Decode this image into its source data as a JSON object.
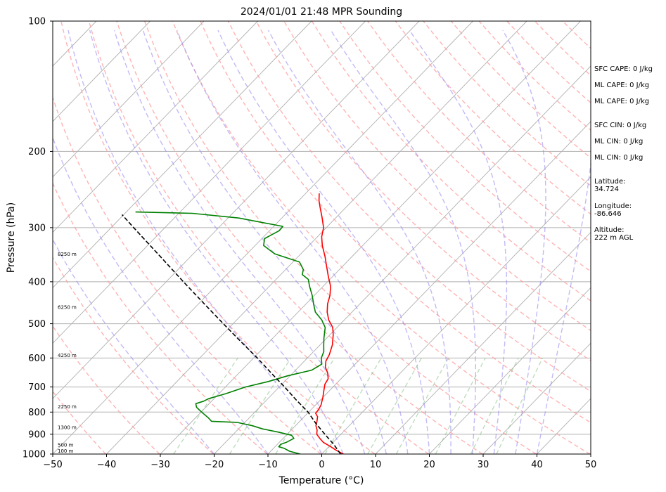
{
  "chart_data": {
    "type": "line",
    "title": "2024/01/01 21:48 MPR Sounding",
    "xlabel": "Temperature (°C)",
    "ylabel": "Pressure (hPa)",
    "xlim": [
      -50,
      50
    ],
    "ylim": [
      1000,
      100
    ],
    "y_scale": "log",
    "skew_x": true,
    "grid": true,
    "x_ticks": [
      "−50",
      "−40",
      "−30",
      "−20",
      "−10",
      "0",
      "10",
      "20",
      "30",
      "40",
      "50"
    ],
    "y_ticks": [
      "100",
      "200",
      "300",
      "400",
      "500",
      "600",
      "700",
      "800",
      "900",
      "1000"
    ],
    "height_labels": [
      {
        "text": "100 m",
        "p": 985
      },
      {
        "text": "500 m",
        "p": 955
      },
      {
        "text": "1300 m",
        "p": 870
      },
      {
        "text": "2250 m",
        "p": 778
      },
      {
        "text": "4250 m",
        "p": 592
      },
      {
        "text": "6250 m",
        "p": 459
      },
      {
        "text": "8250 m",
        "p": 346
      }
    ],
    "series": [
      {
        "color": "#ff0000",
        "style": "solid",
        "points": [
          {
            "p": 1000,
            "t": 4.0
          },
          {
            "p": 980,
            "t": 2.0
          },
          {
            "p": 960,
            "t": 0.2
          },
          {
            "p": 940,
            "t": -1.8
          },
          {
            "p": 920,
            "t": -3.2
          },
          {
            "p": 900,
            "t": -4.5
          },
          {
            "p": 880,
            "t": -5.2
          },
          {
            "p": 860,
            "t": -6.2
          },
          {
            "p": 840,
            "t": -6.8
          },
          {
            "p": 820,
            "t": -7.5
          },
          {
            "p": 805,
            "t": -8.5
          },
          {
            "p": 790,
            "t": -8.6
          },
          {
            "p": 770,
            "t": -9.0
          },
          {
            "p": 740,
            "t": -10.0
          },
          {
            "p": 710,
            "t": -11.2
          },
          {
            "p": 690,
            "t": -12.0
          },
          {
            "p": 670,
            "t": -12.4
          },
          {
            "p": 650,
            "t": -13.5
          },
          {
            "p": 630,
            "t": -15.0
          },
          {
            "p": 610,
            "t": -16.0
          },
          {
            "p": 590,
            "t": -16.5
          },
          {
            "p": 560,
            "t": -17.7
          },
          {
            "p": 530,
            "t": -19.4
          },
          {
            "p": 510,
            "t": -20.8
          },
          {
            "p": 490,
            "t": -22.9
          },
          {
            "p": 470,
            "t": -24.6
          },
          {
            "p": 450,
            "t": -26.0
          },
          {
            "p": 430,
            "t": -27.1
          },
          {
            "p": 410,
            "t": -28.6
          },
          {
            "p": 390,
            "t": -30.7
          },
          {
            "p": 370,
            "t": -32.8
          },
          {
            "p": 350,
            "t": -35.0
          },
          {
            "p": 330,
            "t": -37.5
          },
          {
            "p": 315,
            "t": -39.2
          },
          {
            "p": 300,
            "t": -40.5
          },
          {
            "p": 285,
            "t": -42.5
          },
          {
            "p": 270,
            "t": -44.7
          },
          {
            "p": 260,
            "t": -46.2
          },
          {
            "p": 250,
            "t": -47.5
          }
        ]
      },
      {
        "color": "#008000",
        "style": "solid",
        "points": [
          {
            "p": 1000,
            "t": -4.0
          },
          {
            "p": 985,
            "t": -6.5
          },
          {
            "p": 970,
            "t": -8.0
          },
          {
            "p": 962,
            "t": -9.3
          },
          {
            "p": 950,
            "t": -9.4
          },
          {
            "p": 940,
            "t": -8.7
          },
          {
            "p": 920,
            "t": -8.0
          },
          {
            "p": 905,
            "t": -9.0
          },
          {
            "p": 890,
            "t": -12.0
          },
          {
            "p": 875,
            "t": -15.5
          },
          {
            "p": 860,
            "t": -18.0
          },
          {
            "p": 845,
            "t": -21.5
          },
          {
            "p": 840,
            "t": -26.4
          },
          {
            "p": 825,
            "t": -27.6
          },
          {
            "p": 800,
            "t": -29.9
          },
          {
            "p": 780,
            "t": -31.7
          },
          {
            "p": 765,
            "t": -32.5
          },
          {
            "p": 755,
            "t": -31.5
          },
          {
            "p": 745,
            "t": -31.0
          },
          {
            "p": 725,
            "t": -28.7
          },
          {
            "p": 700,
            "t": -26.3
          },
          {
            "p": 680,
            "t": -23.0
          },
          {
            "p": 660,
            "t": -20.5
          },
          {
            "p": 640,
            "t": -17.0
          },
          {
            "p": 620,
            "t": -16.2
          },
          {
            "p": 600,
            "t": -17.4
          },
          {
            "p": 580,
            "t": -18.1
          },
          {
            "p": 560,
            "t": -19.3
          },
          {
            "p": 540,
            "t": -20.5
          },
          {
            "p": 510,
            "t": -22.2
          },
          {
            "p": 490,
            "t": -24.2
          },
          {
            "p": 470,
            "t": -26.8
          },
          {
            "p": 450,
            "t": -28.6
          },
          {
            "p": 430,
            "t": -30.4
          },
          {
            "p": 410,
            "t": -32.5
          },
          {
            "p": 395,
            "t": -34.0
          },
          {
            "p": 385,
            "t": -36.0
          },
          {
            "p": 375,
            "t": -36.7
          },
          {
            "p": 360,
            "t": -38.8
          },
          {
            "p": 345,
            "t": -44.8
          },
          {
            "p": 330,
            "t": -48.4
          },
          {
            "p": 318,
            "t": -49.5
          },
          {
            "p": 305,
            "t": -48.2
          },
          {
            "p": 298,
            "t": -48.3
          },
          {
            "p": 285,
            "t": -58.0
          },
          {
            "p": 278,
            "t": -67.5
          },
          {
            "p": 276,
            "t": -78.3
          }
        ]
      },
      {
        "color": "#000000",
        "style": "dashed",
        "points": [
          {
            "p": 1000,
            "t": 3.5
          },
          {
            "p": 950,
            "t": 0.5
          },
          {
            "p": 900,
            "t": -3.0
          },
          {
            "p": 850,
            "t": -6.6
          },
          {
            "p": 800,
            "t": -10.1
          },
          {
            "p": 750,
            "t": -14.5
          },
          {
            "p": 700,
            "t": -19.0
          },
          {
            "p": 650,
            "t": -24.0
          },
          {
            "p": 600,
            "t": -29.3
          },
          {
            "p": 550,
            "t": -35.3
          },
          {
            "p": 500,
            "t": -41.8
          },
          {
            "p": 450,
            "t": -48.9
          },
          {
            "p": 400,
            "t": -56.8
          },
          {
            "p": 350,
            "t": -65.6
          },
          {
            "p": 300,
            "t": -75.8
          },
          {
            "p": 280,
            "t": -80.3
          }
        ]
      }
    ],
    "background_lines": {
      "isotherm_color": "#b0b0b0",
      "dry_adiabat_color": "#ff9a9a",
      "moist_adiabat_color": "#9a8cf0",
      "mixing_ratio_color": "#80c080"
    }
  },
  "info_panel": [
    "SFC CAPE: 0 J/kg",
    "ML CAPE: 0 J/kg",
    "ML CAPE: 0 J/kg",
    "SFC CIN: 0 J/kg",
    "ML CIN: 0 J/kg",
    "ML CIN: 0 J/kg",
    "Latitude:\n34.724",
    "Longitude:\n-86.646",
    "Altitude:\n222 m AGL"
  ]
}
